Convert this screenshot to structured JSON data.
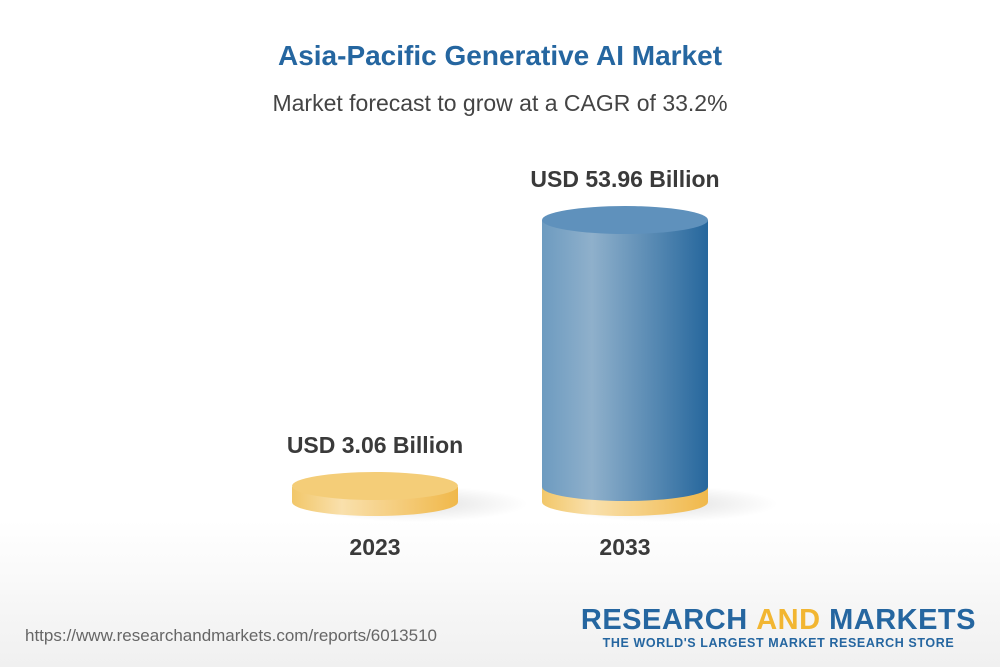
{
  "header": {
    "title": "Asia-Pacific Generative AI Market",
    "subtitle": "Market forecast to grow at a CAGR of 33.2%"
  },
  "chart_data": {
    "type": "bar",
    "title": "Asia-Pacific Generative AI Market",
    "subtitle": "Market forecast to grow at a CAGR of 33.2%",
    "categories": [
      "2023",
      "2033"
    ],
    "values": [
      3.06,
      53.96
    ],
    "data_labels": [
      "USD 3.06 Billion",
      "USD 53.96 Billion"
    ],
    "unit": "USD Billion",
    "style": "3d-cylinder",
    "colors": {
      "base": "#f3c96e",
      "bar": "#3f7eb0",
      "text": "#3a3a3a"
    },
    "grid": false
  },
  "footer": {
    "url": "https://www.researchandmarkets.com/reports/6013510",
    "logo_part1": "RESEARCH ",
    "logo_part2": "AND",
    "logo_part3": " MARKETS",
    "tagline": "THE WORLD'S LARGEST MARKET RESEARCH STORE"
  }
}
